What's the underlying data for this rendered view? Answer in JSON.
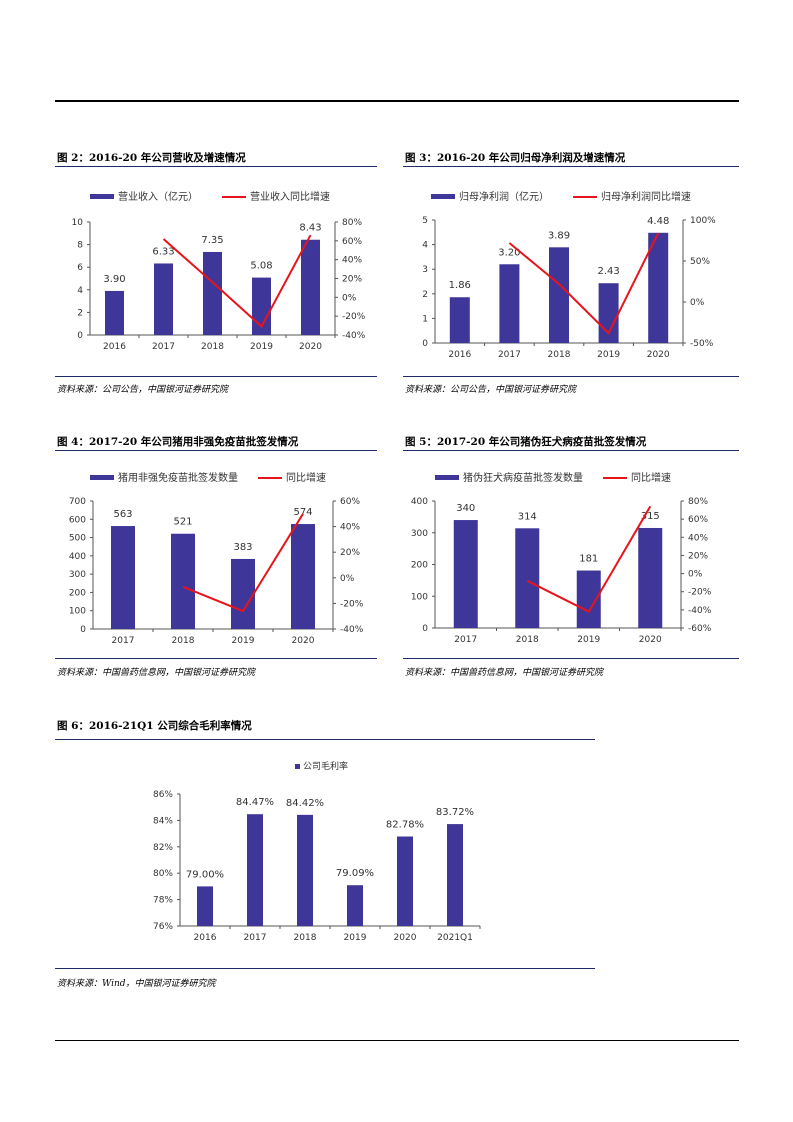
{
  "colors": {
    "bar": "#3F3699",
    "line": "#E8141B",
    "axis": "#555555",
    "title_rule": "#1F2A6B"
  },
  "panels": [
    {
      "title": "图 2：2016-20 年公司营收及增速情况",
      "source": "资料来源：公司公告，中国银河证券研究院",
      "chart_data": {
        "type": "bar",
        "categories": [
          "2016",
          "2017",
          "2018",
          "2019",
          "2020"
        ],
        "series": [
          {
            "name": "营业收入（亿元）",
            "type": "bar",
            "values": [
              3.9,
              6.33,
              7.35,
              5.08,
              8.43
            ],
            "labels": [
              "3.90",
              "6.33",
              "7.35",
              "5.08",
              "8.43"
            ]
          },
          {
            "name": "营业收入同比增速",
            "type": "line",
            "axis": "right",
            "values": [
              null,
              62,
              16,
              -31,
              66
            ]
          }
        ],
        "left_axis": {
          "min": 0,
          "max": 10,
          "ticks": [
            0,
            2,
            4,
            6,
            8,
            10
          ],
          "tick_labels": [
            "0",
            "2",
            "4",
            "6",
            "8",
            "10"
          ]
        },
        "right_axis": {
          "min": -40,
          "max": 80,
          "ticks": [
            -40,
            -20,
            0,
            20,
            40,
            60,
            80
          ],
          "tick_labels": [
            "-40%",
            "-20%",
            "0%",
            "20%",
            "40%",
            "60%",
            "80%"
          ]
        }
      }
    },
    {
      "title": "图 3：2016-20 年公司归母净利润及增速情况",
      "source": "资料来源：公司公告，中国银河证券研究院",
      "chart_data": {
        "type": "bar",
        "categories": [
          "2016",
          "2017",
          "2018",
          "2019",
          "2020"
        ],
        "series": [
          {
            "name": "归母净利润（亿元）",
            "type": "bar",
            "values": [
              1.86,
              3.2,
              3.89,
              2.43,
              4.48
            ],
            "labels": [
              "1.86",
              "3.20",
              "3.89",
              "2.43",
              "4.48"
            ]
          },
          {
            "name": "归母净利润同比增速",
            "type": "line",
            "axis": "right",
            "values": [
              null,
              72,
              22,
              -38,
              84
            ]
          }
        ],
        "left_axis": {
          "min": 0,
          "max": 5,
          "ticks": [
            0,
            1,
            2,
            3,
            4,
            5
          ],
          "tick_labels": [
            "0",
            "1",
            "2",
            "3",
            "4",
            "5"
          ]
        },
        "right_axis": {
          "min": -50,
          "max": 100,
          "ticks": [
            -50,
            0,
            50,
            100
          ],
          "tick_labels": [
            "-50%",
            "0%",
            "50%",
            "100%"
          ]
        }
      }
    },
    {
      "title": "图 4：2017-20 年公司猪用非强免疫苗批签发情况",
      "source": "资料来源：中国兽药信息网，中国银河证券研究院",
      "chart_data": {
        "type": "bar",
        "categories": [
          "2017",
          "2018",
          "2019",
          "2020"
        ],
        "series": [
          {
            "name": "猪用非强免疫苗批签发数量",
            "type": "bar",
            "values": [
              563,
              521,
              383,
              574
            ],
            "labels": [
              "563",
              "521",
              "383",
              "574"
            ]
          },
          {
            "name": "同比增速",
            "type": "line",
            "axis": "right",
            "values": [
              null,
              -7,
              -26,
              50
            ]
          }
        ],
        "left_axis": {
          "min": 0,
          "max": 700,
          "ticks": [
            0,
            100,
            200,
            300,
            400,
            500,
            600,
            700
          ],
          "tick_labels": [
            "0",
            "100",
            "200",
            "300",
            "400",
            "500",
            "600",
            "700"
          ]
        },
        "right_axis": {
          "min": -40,
          "max": 60,
          "ticks": [
            -40,
            -20,
            0,
            20,
            40,
            60
          ],
          "tick_labels": [
            "-40%",
            "-20%",
            "0%",
            "20%",
            "40%",
            "60%"
          ]
        }
      }
    },
    {
      "title": "图 5：2017-20 年公司猪伪狂犬病疫苗批签发情况",
      "source": "资料来源：中国兽药信息网，中国银河证券研究院",
      "chart_data": {
        "type": "bar",
        "categories": [
          "2017",
          "2018",
          "2019",
          "2020"
        ],
        "series": [
          {
            "name": "猪伪狂犬病疫苗批签发数量",
            "type": "bar",
            "values": [
              340,
              314,
              181,
              315
            ],
            "labels": [
              "340",
              "314",
              "181",
              "315"
            ]
          },
          {
            "name": "同比增速",
            "type": "line",
            "axis": "right",
            "values": [
              null,
              -8,
              -42,
              74
            ]
          }
        ],
        "left_axis": {
          "min": 0,
          "max": 400,
          "ticks": [
            0,
            100,
            200,
            300,
            400
          ],
          "tick_labels": [
            "0",
            "100",
            "200",
            "300",
            "400"
          ]
        },
        "right_axis": {
          "min": -60,
          "max": 80,
          "ticks": [
            -60,
            -40,
            -20,
            0,
            20,
            40,
            60,
            80
          ],
          "tick_labels": [
            "-60%",
            "-40%",
            "-20%",
            "0%",
            "20%",
            "40%",
            "60%",
            "80%"
          ]
        }
      }
    },
    {
      "title": "图 6：2016-21Q1 公司综合毛利率情况",
      "source": "资料来源：Wind，中国银河证券研究院",
      "chart_data": {
        "type": "bar",
        "categories": [
          "2016",
          "2017",
          "2018",
          "2019",
          "2020",
          "2021Q1"
        ],
        "series": [
          {
            "name": "公司毛利率",
            "type": "bar",
            "values": [
              79.0,
              84.47,
              84.42,
              79.09,
              82.78,
              83.72
            ],
            "labels": [
              "79.00%",
              "84.47%",
              "84.42%",
              "79.09%",
              "82.78%",
              "83.72%"
            ]
          }
        ],
        "left_axis": {
          "min": 76,
          "max": 86,
          "ticks": [
            76,
            78,
            80,
            82,
            84,
            86
          ],
          "tick_labels": [
            "76%",
            "78%",
            "80%",
            "82%",
            "84%",
            "86%"
          ]
        }
      }
    }
  ]
}
